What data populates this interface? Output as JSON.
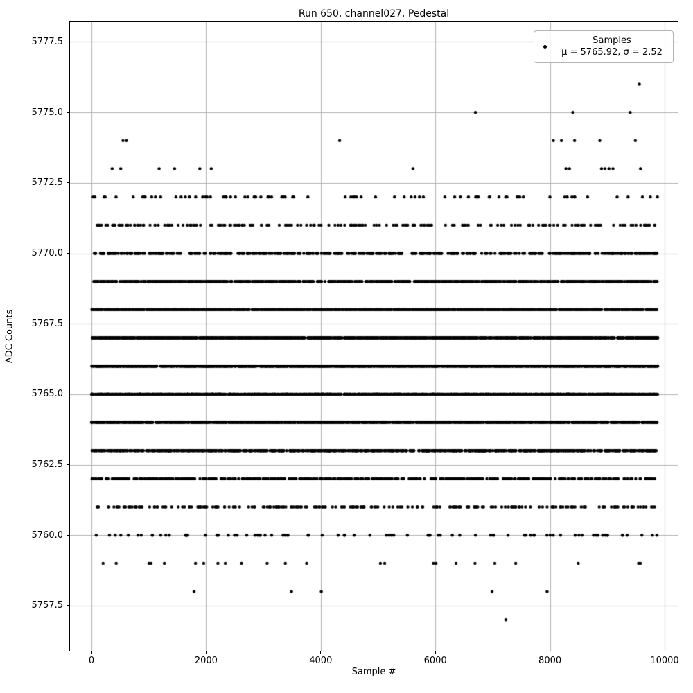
{
  "chart_data": {
    "type": "scatter",
    "title": "Run 650, channel027, Pedestal",
    "xlabel": "Sample #",
    "ylabel": "ADC Counts",
    "xlim": [
      -375,
      10230
    ],
    "ylim": [
      5755.9,
      5778.2
    ],
    "xticks": [
      0,
      2000,
      4000,
      6000,
      8000,
      10000
    ],
    "yticks": [
      5757.5,
      5760.0,
      5762.5,
      5765.0,
      5767.5,
      5770.0,
      5772.5,
      5775.0,
      5777.5
    ],
    "grid": true,
    "grid_color": "#b0b0b0",
    "axis_color": "#000000",
    "marker": {
      "color": "#000000",
      "radius": 2.2
    },
    "legend": {
      "position": "upper right",
      "line1": "Samples",
      "line2": "μ = 5765.92, σ = 2.52"
    },
    "stats": {
      "mu": 5765.92,
      "sigma": 2.52
    },
    "x_range": [
      0,
      9880
    ],
    "bands": [
      {
        "adc": 5757,
        "x": [
          7230
        ]
      },
      {
        "adc": 5758,
        "x": [
          1790,
          3490,
          4010,
          6990,
          7950
        ]
      },
      {
        "adc": 5759,
        "count": 24
      },
      {
        "adc": 5760,
        "count": 85
      },
      {
        "adc": 5761,
        "count": 230
      },
      {
        "adc": 5762,
        "count": 465
      },
      {
        "adc": 5763,
        "count": 800
      },
      {
        "adc": 5764,
        "count": 1170
      },
      {
        "adc": 5765,
        "count": 1460
      },
      {
        "adc": 5766,
        "count": 1570
      },
      {
        "adc": 5767,
        "count": 1430
      },
      {
        "adc": 5768,
        "count": 1120
      },
      {
        "adc": 5769,
        "count": 745
      },
      {
        "adc": 5770,
        "count": 420
      },
      {
        "adc": 5771,
        "count": 205
      },
      {
        "adc": 5772,
        "count": 85
      },
      {
        "adc": 5773,
        "x": [
          360,
          510,
          1180,
          1450,
          1890,
          2090,
          5610,
          8280,
          8340,
          8900,
          8960,
          9030,
          9100,
          9580
        ]
      },
      {
        "adc": 5774,
        "x": [
          550,
          610,
          4330,
          8060,
          8200,
          8430,
          8870,
          9490
        ]
      },
      {
        "adc": 5775,
        "x": [
          6700,
          8400,
          9400
        ]
      },
      {
        "adc": 5776,
        "x": [
          9560
        ]
      }
    ]
  }
}
